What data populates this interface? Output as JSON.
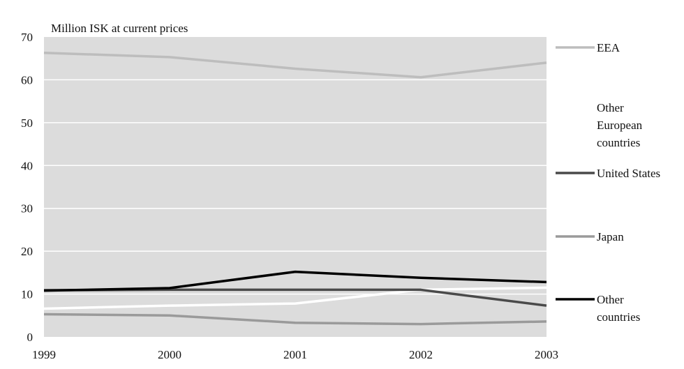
{
  "chart_data": {
    "type": "line",
    "title": "",
    "unit_label": "Million ISK at current prices",
    "xlabel": "",
    "ylabel": "",
    "x": [
      "1999",
      "2000",
      "2001",
      "2002",
      "2003"
    ],
    "ylim": [
      0,
      70
    ],
    "yticks": [
      "0",
      "10",
      "20",
      "30",
      "40",
      "50",
      "60",
      "70"
    ],
    "grid": "horizontal",
    "legend_placement": "right",
    "series": [
      {
        "name": "EEA",
        "color": "#bdbdbd",
        "values": [
          66.3,
          65.3,
          62.6,
          60.6,
          64.0
        ],
        "legend_lines": [
          "EEA"
        ]
      },
      {
        "name": "Other European countries",
        "color": "#ffffff",
        "values": [
          6.6,
          7.3,
          7.8,
          11.0,
          11.5
        ],
        "legend_lines": [
          "Other",
          "European",
          "countries"
        ]
      },
      {
        "name": "United States",
        "color": "#4a4a4a",
        "values": [
          10.9,
          11.0,
          11.0,
          11.0,
          7.3
        ],
        "legend_lines": [
          "United States"
        ]
      },
      {
        "name": "Japan",
        "color": "#9a9a9a",
        "values": [
          5.3,
          5.0,
          3.3,
          3.0,
          3.6
        ],
        "legend_lines": [
          "Japan"
        ]
      },
      {
        "name": "Other countries",
        "color": "#000000",
        "values": [
          10.8,
          11.4,
          15.2,
          13.8,
          12.8
        ],
        "legend_lines": [
          "Other",
          "countries"
        ]
      }
    ]
  }
}
